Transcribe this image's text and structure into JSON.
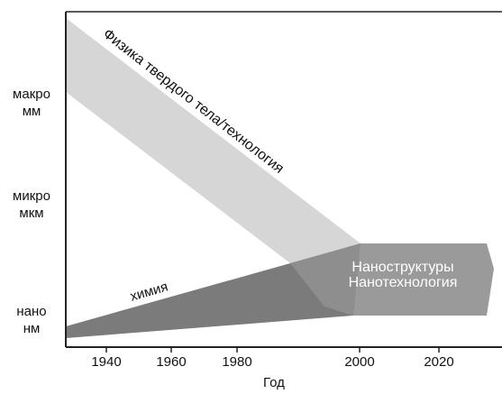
{
  "y_labels": [
    {
      "name": "макро",
      "unit": "мм"
    },
    {
      "name": "микро",
      "unit": "мкм"
    },
    {
      "name": "нано",
      "unit": "нм"
    }
  ],
  "x_ticks": [
    "1940",
    "1960",
    "1980",
    "2000",
    "2020"
  ],
  "x_label": "Год",
  "bands": {
    "physics": "Физика твердого тела/технология",
    "chemistry": "химия",
    "nano": [
      "Наноструктуры",
      "Нанотехнология"
    ]
  }
}
